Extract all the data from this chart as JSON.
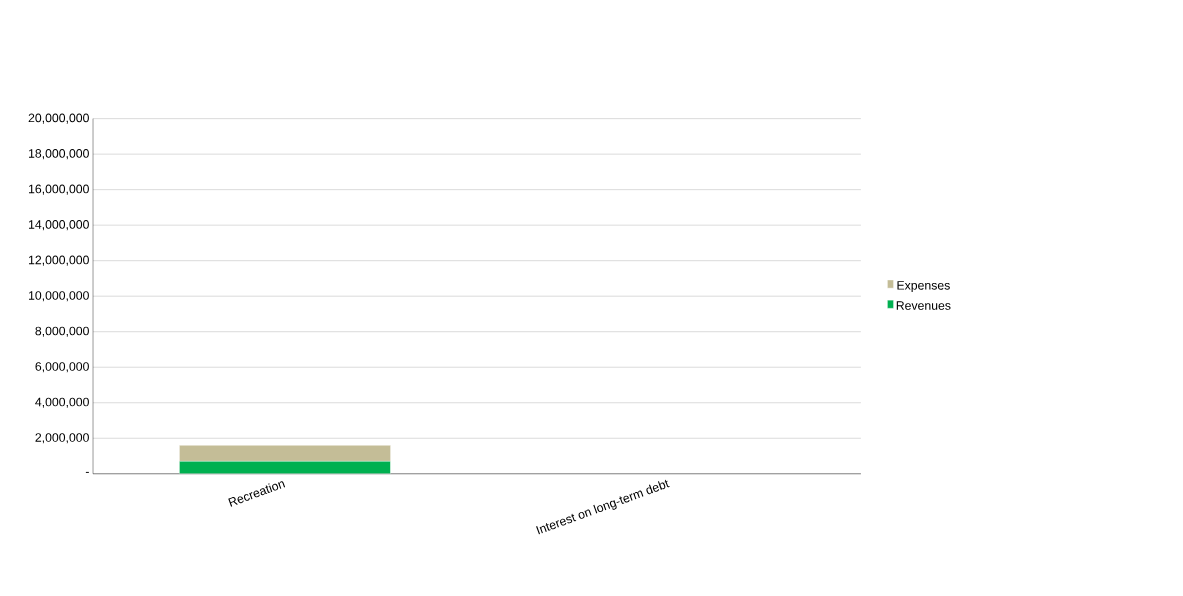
{
  "chart_data": {
    "type": "bar",
    "stacked": true,
    "categories": [
      "Recreation",
      "Interest on long-term debt"
    ],
    "series": [
      {
        "name": "Revenues",
        "color": "#00b050",
        "values": [
          700000,
          0
        ]
      },
      {
        "name": "Expenses",
        "color": "#c4bd97",
        "values": [
          900000,
          0
        ]
      }
    ],
    "ylim": [
      0,
      20000000
    ],
    "yticks": [
      {
        "value": 0,
        "label": "-"
      },
      {
        "value": 2000000,
        "label": "2,000,000"
      },
      {
        "value": 4000000,
        "label": "4,000,000"
      },
      {
        "value": 6000000,
        "label": "6,000,000"
      },
      {
        "value": 8000000,
        "label": "8,000,000"
      },
      {
        "value": 10000000,
        "label": "10,000,000"
      },
      {
        "value": 12000000,
        "label": "12,000,000"
      },
      {
        "value": 14000000,
        "label": "14,000,000"
      },
      {
        "value": 16000000,
        "label": "16,000,000"
      },
      {
        "value": 18000000,
        "label": "18,000,000"
      },
      {
        "value": 20000000,
        "label": "20,000,000"
      }
    ],
    "grid": "y",
    "legend": "right"
  }
}
